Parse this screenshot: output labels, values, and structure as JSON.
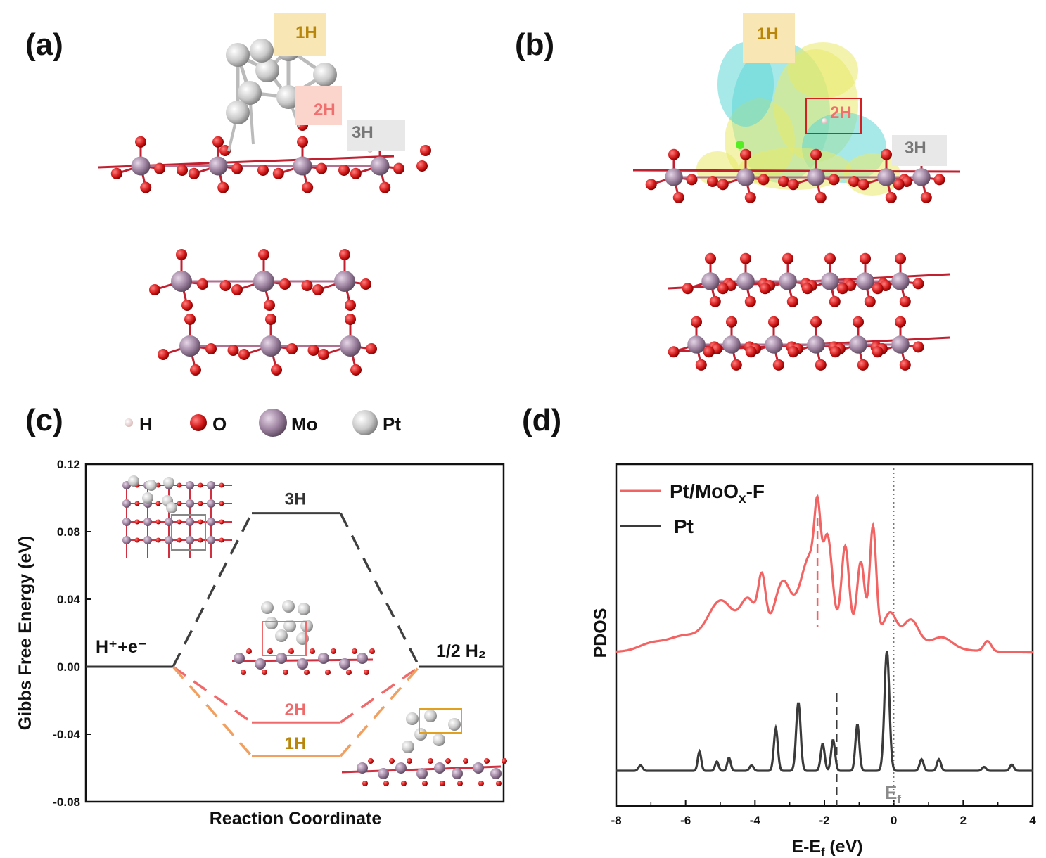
{
  "panels": {
    "a": "(a)",
    "b": "(b)",
    "c": "(c)",
    "d": "(d)"
  },
  "structure_labels": {
    "a": [
      "1H",
      "2H",
      "3H"
    ],
    "b": [
      "1H",
      "2H",
      "3H"
    ]
  },
  "atom_legend": [
    {
      "label": "H",
      "color": "#f2dede"
    },
    {
      "label": "O",
      "color": "#d41a1a"
    },
    {
      "label": "Mo",
      "color": "#9a7f9c"
    },
    {
      "label": "Pt",
      "color": "#d4d4d4"
    }
  ],
  "chart_data": [
    {
      "type": "line",
      "panel": "c",
      "xlabel": "Reaction Coordinate",
      "ylabel": "Gibbs Free Energy (eV)",
      "ylim": [
        -0.08,
        0.12
      ],
      "yticks": [
        "0.12",
        "0.08",
        "0.04",
        "0.00",
        "-0.04",
        "-0.08"
      ],
      "state_labels": {
        "initial": "H⁺+e⁻",
        "final": "1/2 H₂"
      },
      "series": [
        {
          "name": "3H",
          "values": [
            0.0,
            0.091,
            0.0
          ],
          "color": "#3f3f3f"
        },
        {
          "name": "2H",
          "values": [
            0.0,
            -0.033,
            0.0
          ],
          "color": "#ef6b6b"
        },
        {
          "name": "1H",
          "values": [
            0.0,
            -0.053,
            0.0
          ],
          "color": "#f0a060"
        }
      ],
      "grid": false
    },
    {
      "type": "line",
      "panel": "d",
      "xlabel": "E-Eƒ (eV)",
      "ylabel": "PDOS",
      "xlim": [
        -8,
        4
      ],
      "xticks": [
        "-8",
        "-6",
        "-4",
        "-2",
        "0",
        "2",
        "4"
      ],
      "fermi_label": "Eƒ",
      "legend": "top-left",
      "series": [
        {
          "name": "Pt/MoOx-F",
          "color": "#f26464",
          "d_band_center": -2.2,
          "peaks": [
            [
              -7.0,
              0.05,
              0.5
            ],
            [
              -6.1,
              0.08,
              0.6
            ],
            [
              -5.0,
              0.3,
              0.5
            ],
            [
              -4.2,
              0.25,
              0.3
            ],
            [
              -3.8,
              0.4,
              0.15
            ],
            [
              -3.2,
              0.35,
              0.3
            ],
            [
              -2.4,
              0.55,
              0.4
            ],
            [
              -2.2,
              0.55,
              0.12
            ],
            [
              -1.9,
              0.6,
              0.18
            ],
            [
              -1.4,
              0.65,
              0.15
            ],
            [
              -0.95,
              0.55,
              0.15
            ],
            [
              -0.6,
              0.85,
              0.13
            ],
            [
              -0.1,
              0.2,
              0.25
            ],
            [
              0.5,
              0.18,
              0.3
            ],
            [
              1.4,
              0.08,
              0.4
            ],
            [
              2.7,
              0.08,
              0.15
            ]
          ]
        },
        {
          "name": "Pt",
          "color": "#3a3a3a",
          "d_band_center": -1.65,
          "peaks": [
            [
              -7.3,
              0.07,
              0.08
            ],
            [
              -5.6,
              0.25,
              0.07
            ],
            [
              -5.1,
              0.12,
              0.07
            ],
            [
              -4.75,
              0.17,
              0.07
            ],
            [
              -4.1,
              0.07,
              0.08
            ],
            [
              -3.4,
              0.55,
              0.08
            ],
            [
              -2.75,
              0.88,
              0.09
            ],
            [
              -2.05,
              0.35,
              0.08
            ],
            [
              -1.75,
              0.4,
              0.08
            ],
            [
              -1.05,
              0.6,
              0.08
            ],
            [
              -0.2,
              1.55,
              0.1
            ],
            [
              0.8,
              0.15,
              0.08
            ],
            [
              1.3,
              0.15,
              0.08
            ],
            [
              2.6,
              0.05,
              0.08
            ],
            [
              3.4,
              0.08,
              0.08
            ]
          ]
        }
      ]
    }
  ]
}
